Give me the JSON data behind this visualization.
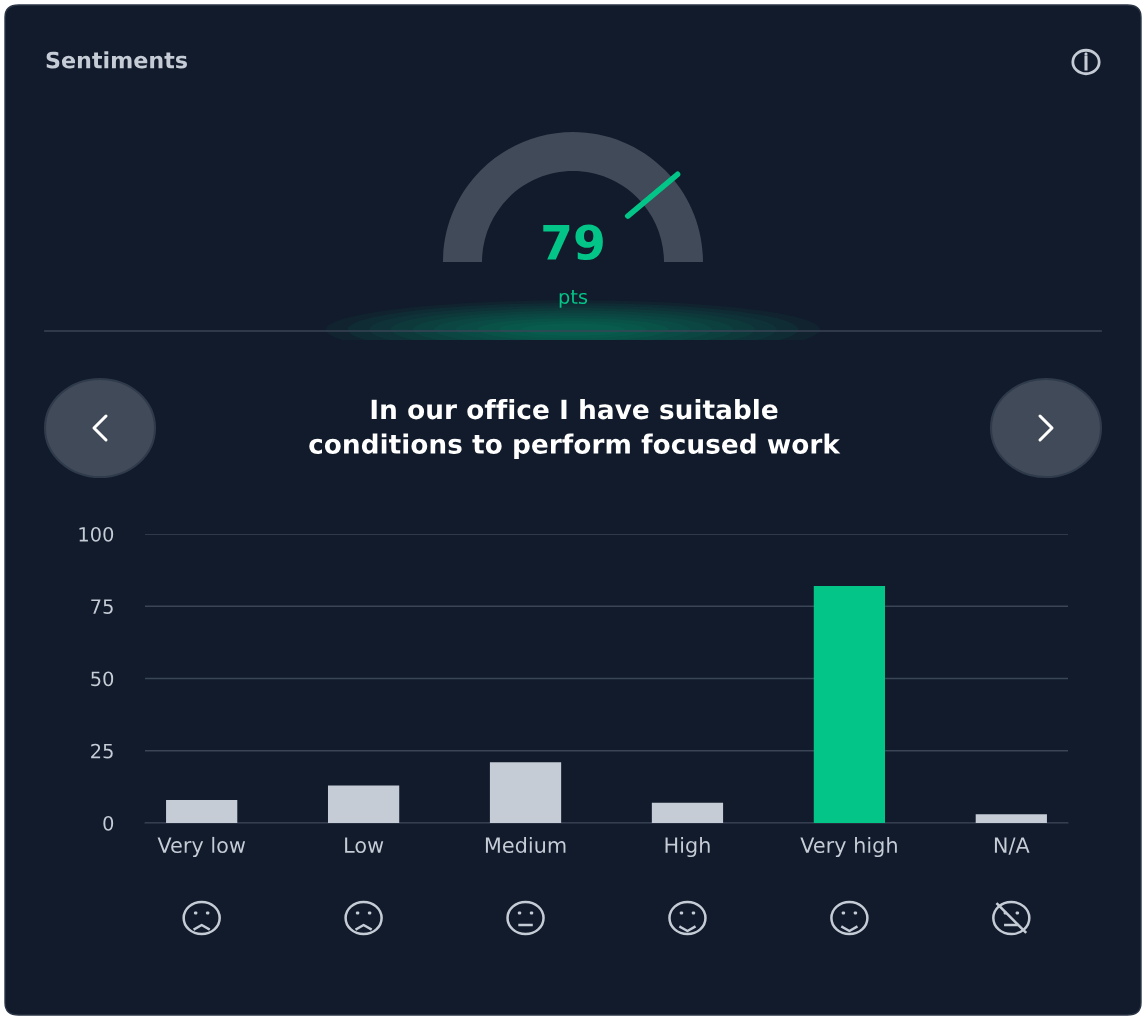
{
  "chart_data": [
    {
      "type": "other",
      "title": "Sentiments",
      "annotations": [
        "79",
        "pts"
      ],
      "color": "#02c587"
    },
    {
      "type": "bar",
      "title": "In our office I have suitable\nconditions to perform focused work",
      "categories": [
        "Very low",
        "Low",
        "Medium",
        "High",
        "Very high",
        "N/A"
      ],
      "values": [
        8,
        13,
        21,
        7,
        82,
        3
      ],
      "colors": [
        "#c5ccd6",
        "#c5ccd6",
        "#c5ccd6",
        "#c5ccd6",
        "#02c587",
        "#c5ccd6"
      ],
      "ylim": [
        0,
        100
      ],
      "yticks": [
        0,
        25,
        50,
        75,
        100
      ],
      "grid": "y"
    }
  ]
}
